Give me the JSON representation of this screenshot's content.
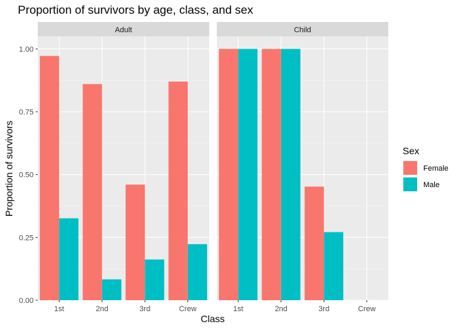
{
  "chart_data": {
    "type": "bar",
    "title": "Proportion of survivors by age, class, and sex",
    "xlabel": "Class",
    "ylabel": "Proportion of survivors",
    "ylim": [
      0,
      1.05
    ],
    "yticks": [
      "0.00",
      "0.25",
      "0.50",
      "0.75",
      "1.00"
    ],
    "categories": [
      "1st",
      "2nd",
      "3rd",
      "Crew"
    ],
    "grid": true,
    "legend": {
      "title": "Sex",
      "position": "right",
      "entries": [
        "Female",
        "Male"
      ]
    },
    "colors": {
      "Female": "#F8766D",
      "Male": "#00BFC4"
    },
    "panels": [
      {
        "label": "Adult",
        "series": [
          {
            "name": "Female",
            "values": [
              0.972,
              0.86,
              0.46,
              0.87
            ]
          },
          {
            "name": "Male",
            "values": [
              0.326,
              0.083,
              0.162,
              0.223
            ]
          }
        ]
      },
      {
        "label": "Child",
        "series": [
          {
            "name": "Female",
            "values": [
              1.0,
              1.0,
              0.452,
              null
            ]
          },
          {
            "name": "Male",
            "values": [
              1.0,
              1.0,
              0.271,
              null
            ]
          }
        ]
      }
    ]
  }
}
